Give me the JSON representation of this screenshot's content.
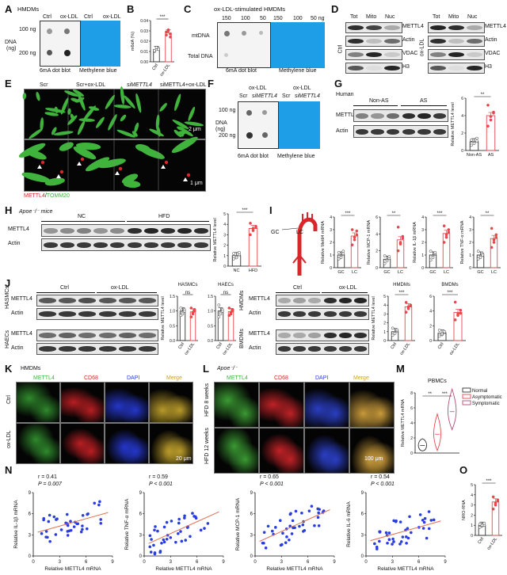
{
  "panels": {
    "A": {
      "letter": "A",
      "title": "HMDMs",
      "col_ctrl": "Ctrl",
      "col_ox": "ox-LDL",
      "row1": "100 ng",
      "row2": "200 ng",
      "axis": "DNA",
      "axis_unit": "(ng)",
      "cap1": "6mA dot blot",
      "cap2": "Methylene blue"
    },
    "B": {
      "letter": "B",
      "ylabel": "m6dA (%)",
      "sig": "***",
      "x1": "Ctrl",
      "x2": "ox-LDL",
      "chart_data": {
        "type": "bar",
        "categories": [
          "Ctrl",
          "ox-LDL"
        ],
        "values": [
          0.012,
          0.028
        ],
        "ylim": [
          0,
          0.04
        ],
        "yticks": [
          "0.00",
          "0.01",
          "0.02",
          "0.03",
          "0.04"
        ],
        "points": [
          [
            0.01,
            0.012,
            0.013,
            0.011,
            0.014,
            0.012
          ],
          [
            0.026,
            0.03,
            0.027,
            0.029,
            0.031,
            0.024
          ]
        ]
      }
    },
    "C": {
      "letter": "C",
      "title": "ox-LDL-stimulated HMDMs",
      "n1": "150",
      "n2": "100",
      "n3": "50",
      "n4": "150",
      "n5": "100",
      "n6": "50 ng",
      "row1": "mtDNA",
      "row2": "Total DNA",
      "cap1": "6mA dot blot",
      "cap2": "Methylene blue"
    },
    "D": {
      "letter": "D",
      "h1": "Tot",
      "h2": "Mito",
      "h3": "Nuc",
      "h4": "Tot",
      "h5": "Mito",
      "h6": "Nuc",
      "side1": "Ctrl",
      "side2": "ox-LDL",
      "r1": "METTL4",
      "r2": "Actin",
      "r3": "VDAC",
      "r4": "H3"
    },
    "E": {
      "letter": "E",
      "c1": "Scr",
      "c2": "Scr+ox-LDL",
      "c3": "siMETTL4",
      "c4": "siMETTL4+ox-LDL",
      "scale1": "2 μm",
      "scale2": "1 μm",
      "legend1": "METTL4",
      "legend_sep": "/",
      "legend2": "TOMM20"
    },
    "F": {
      "letter": "F",
      "top1": "ox-LDL",
      "top2": "ox-LDL",
      "s1": "Scr",
      "s2": "siMETTL4",
      "s3": "Scr",
      "s4": "siMETTL4",
      "row1": "100 ng",
      "row2": "200 ng",
      "axis": "DNA",
      "axis_unit": "(ng)",
      "cap1": "6mA dot blot",
      "cap2": "Methylene blue"
    },
    "G": {
      "letter": "G",
      "title": "Human",
      "g1": "Non-AS",
      "g2": "AS",
      "r1": "METTL4",
      "r2": "Actin",
      "ylabel": "Relative METTL4 level",
      "sig": "**",
      "x1": "Non-AS",
      "x2": "AS",
      "chart_data": {
        "type": "bar",
        "categories": [
          "Non-AS",
          "AS"
        ],
        "values": [
          1.0,
          4.0
        ],
        "ylim": [
          0,
          6
        ],
        "yticks": [
          "0",
          "2",
          "4",
          "6"
        ],
        "points": [
          [
            0.6,
            0.9,
            1.1,
            1.2,
            0.8,
            1.4
          ],
          [
            2.8,
            3.5,
            4.4,
            5.2,
            3.9,
            4.3
          ]
        ]
      }
    },
    "H": {
      "letter": "H",
      "title": "Apoe⁻/⁻ mice",
      "g1": "NC",
      "g2": "HFD",
      "r1": "METTL4",
      "r2": "Actin",
      "ylabel": "Relative METTL4 level",
      "sig": "***",
      "x1": "NC",
      "x2": "HFD",
      "chart_data": {
        "type": "bar",
        "categories": [
          "NC",
          "HFD"
        ],
        "values": [
          1.0,
          3.6
        ],
        "ylim": [
          0,
          5
        ],
        "yticks": [
          "0",
          "1",
          "2",
          "3",
          "4",
          "5"
        ],
        "points": [
          [
            0.7,
            0.9,
            1.1,
            1.2,
            0.8,
            1.3
          ],
          [
            3.0,
            3.4,
            3.8,
            4.1,
            3.6,
            3.7
          ]
        ]
      }
    },
    "I": {
      "letter": "I",
      "gc": "GC",
      "lc": "LC",
      "charts": [
        {
          "ylabel": "Relative Mettl4 mRNA",
          "sig": "***",
          "yticks": [
            "0",
            "1",
            "2",
            "3",
            "4"
          ],
          "ymax": 4,
          "values": [
            1.0,
            2.5
          ],
          "points": [
            [
              0.7,
              0.9,
              1.1,
              1.2,
              0.8,
              1.3
            ],
            [
              1.8,
              2.2,
              2.6,
              3.0,
              2.4,
              2.9
            ]
          ]
        },
        {
          "ylabel": "Relative MCP-1 mRNA",
          "sig": "**",
          "yticks": [
            "0",
            "2",
            "4",
            "6"
          ],
          "ymax": 6,
          "values": [
            1.0,
            3.3
          ],
          "points": [
            [
              0.5,
              0.9,
              1.1,
              1.4,
              0.8,
              1.3
            ],
            [
              2.0,
              2.8,
              3.5,
              4.8,
              3.0,
              3.7
            ]
          ]
        },
        {
          "ylabel": "Relative IL-1β mRNA",
          "sig": "***",
          "yticks": [
            "0",
            "1",
            "2",
            "3",
            "4"
          ],
          "ymax": 4,
          "values": [
            1.0,
            2.7
          ],
          "points": [
            [
              0.6,
              0.9,
              1.1,
              1.3,
              0.8,
              1.2
            ],
            [
              2.0,
              2.4,
              3.0,
              3.3,
              2.6,
              2.8
            ]
          ]
        },
        {
          "ylabel": "Relative TNF-α mRNA",
          "sig": "**",
          "yticks": [
            "0",
            "1",
            "2",
            "3",
            "4"
          ],
          "ymax": 4,
          "values": [
            1.0,
            2.3
          ],
          "points": [
            [
              0.7,
              0.9,
              1.1,
              1.3,
              0.8,
              1.0
            ],
            [
              1.6,
              2.0,
              2.6,
              3.1,
              2.2,
              2.4
            ]
          ]
        }
      ]
    },
    "J": {
      "letter": "J",
      "g1": "Ctrl",
      "g2": "ox-LDL",
      "g3": "Ctrl",
      "g4": "ox-LDL",
      "cell1": "HASMCs",
      "cell2": "HAECs",
      "cell3": "HMDMs",
      "cell4": "BMDMs",
      "r1": "METTL4",
      "r2": "Actin",
      "r3": "METTL4",
      "r4": "Actin",
      "r5": "METTL4",
      "r6": "Actin",
      "r7": "METTL4",
      "r8": "Actin",
      "ylabel": "Relative METTL4 level",
      "x1": "Ctrl",
      "x2": "ox-LDL",
      "charts": [
        {
          "title": "HASMCs",
          "sig": "ns",
          "yticks": [
            "0.0",
            "0.5",
            "1.0",
            "1.5"
          ],
          "ymax": 1.5,
          "values": [
            1.0,
            0.97
          ],
          "points": [
            [
              0.85,
              0.95,
              1.05,
              1.1,
              0.9,
              1.0
            ],
            [
              0.8,
              0.95,
              1.0,
              1.1,
              0.9,
              1.05
            ]
          ]
        },
        {
          "title": "HAECs",
          "sig": "ns",
          "yticks": [
            "0.0",
            "0.5",
            "1.0",
            "1.5"
          ],
          "ymax": 1.5,
          "values": [
            1.0,
            0.98
          ],
          "points": [
            [
              0.8,
              0.95,
              1.05,
              1.2,
              0.9,
              1.0
            ],
            [
              0.85,
              0.9,
              1.05,
              1.1,
              0.95,
              1.0
            ]
          ]
        },
        {
          "title": "HMDMs",
          "sig": "***",
          "yticks": [
            "0",
            "1",
            "2",
            "3",
            "4",
            "5"
          ],
          "ymax": 5,
          "values": [
            1.0,
            3.8
          ],
          "points": [
            [
              0.6,
              0.9,
              1.1,
              1.4,
              0.8,
              1.2
            ],
            [
              3.2,
              3.6,
              4.0,
              4.3,
              3.8,
              3.9
            ]
          ]
        },
        {
          "title": "BMDMs",
          "sig": "***",
          "yticks": [
            "0",
            "2",
            "4",
            "6"
          ],
          "ymax": 6,
          "values": [
            1.0,
            3.8
          ],
          "points": [
            [
              0.6,
              0.8,
              1.1,
              1.4,
              0.9,
              1.2
            ],
            [
              2.8,
              3.4,
              4.1,
              5.2,
              3.6,
              3.7
            ]
          ]
        }
      ]
    },
    "K": {
      "letter": "K",
      "title": "HMDMs",
      "c1": "METTL4",
      "c2": "CD68",
      "c3": "DAPI",
      "c4": "Merge",
      "r1": "Ctrl",
      "r2": "ox-LDL",
      "scale": "20 μm"
    },
    "L": {
      "letter": "L",
      "title": "Apoe⁻/⁻",
      "c1": "METTL4",
      "c2": "CD68",
      "c3": "DAPI",
      "c4": "Merge",
      "r1": "HFD 8 weeks",
      "r2": "HFD 12 weeks",
      "scale": "100 μm"
    },
    "M": {
      "letter": "M",
      "title": "PBMCs",
      "ylabel": "Relative METTL4 mRNA",
      "sig1": "**",
      "sig2": "***",
      "yticks": [
        "0",
        "2",
        "4",
        "6",
        "8"
      ],
      "legend": [
        {
          "name": "Normal",
          "color": "#333333"
        },
        {
          "name": "Asymptomatic",
          "color": "#e8474f"
        },
        {
          "name": "Symptomatic",
          "color": "#b44c79"
        }
      ],
      "chart_data": {
        "type": "violin",
        "categories": [
          "Normal",
          "Asymptomatic",
          "Symptomatic"
        ],
        "medians": [
          1.0,
          2.5,
          5.5
        ],
        "ylim": [
          0,
          8
        ]
      }
    },
    "N": {
      "letter": "N",
      "xlabel": "Relative METTL4 mRNA",
      "xticks": [
        "0",
        "3",
        "6",
        "9"
      ],
      "charts": [
        {
          "r": "r = 0.41",
          "p": "P = 0.007",
          "ylabel": "Relative IL-1β mRNA",
          "yticks": [
            "0",
            "3",
            "6",
            "9"
          ],
          "ymax": 9,
          "fit": [
            3.2,
            6.0
          ]
        },
        {
          "r": "r = 0.59",
          "p": "P < 0.001",
          "ylabel": "Relative TNF-α mRNA",
          "yticks": [
            "0",
            "3",
            "6",
            "9"
          ],
          "ymax": 9,
          "fit": [
            1.5,
            6.0
          ]
        },
        {
          "r": "r = 0.65",
          "p": "P < 0.001",
          "ylabel": "Relative MCP-1 mRNA",
          "yticks": [
            "0",
            "3",
            "6",
            "9"
          ],
          "ymax": 9,
          "fit": [
            1.8,
            6.3
          ]
        },
        {
          "r": "r = 0.54",
          "p": "P < 0.001",
          "ylabel": "Relative IL-6 mRNA",
          "yticks": [
            "0",
            "3",
            "6",
            "9"
          ],
          "ymax": 9,
          "fit": [
            2.0,
            4.8
          ]
        }
      ]
    },
    "O": {
      "letter": "O",
      "ylabel": "NRO-RNA",
      "sig": "***",
      "x1": "Ctrl",
      "x2": "ox-LDL",
      "yticks": [
        "0",
        "1",
        "2",
        "3",
        "4",
        "5"
      ],
      "chart_data": {
        "type": "bar",
        "categories": [
          "Ctrl",
          "ox-LDL"
        ],
        "values": [
          1.0,
          3.3
        ],
        "ylim": [
          0,
          5
        ],
        "points": [
          [
            0.8,
            0.9,
            1.0,
            1.1,
            1.0,
            1.2
          ],
          [
            2.6,
            3.0,
            3.4,
            3.8,
            3.2,
            3.5
          ]
        ]
      }
    }
  },
  "colors": {
    "bar_ctrl": "#333333",
    "bar_treat": "#e8474f",
    "dot_ctrl": "#ffffff",
    "dot_treat": "#e8474f",
    "scatter": "#2a3ee0",
    "fit": "#e07050",
    "blue": "#1e9ee6",
    "green": "#3fb33c",
    "red": "#d8262a"
  }
}
